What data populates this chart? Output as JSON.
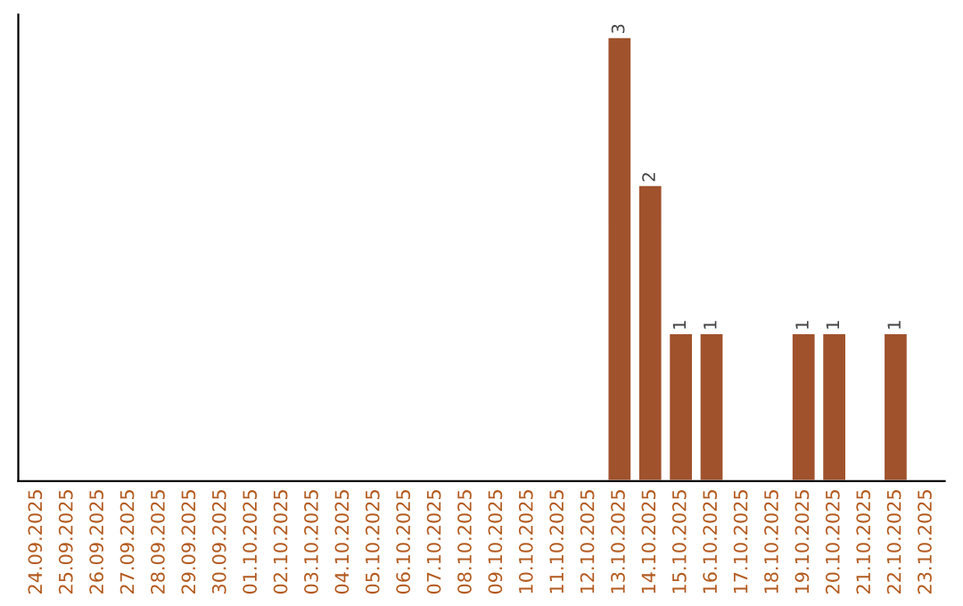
{
  "chart_data": {
    "type": "bar",
    "categories": [
      "24.09.2025",
      "25.09.2025",
      "26.09.2025",
      "27.09.2025",
      "28.09.2025",
      "29.09.2025",
      "30.09.2025",
      "01.10.2025",
      "02.10.2025",
      "03.10.2025",
      "04.10.2025",
      "05.10.2025",
      "06.10.2025",
      "07.10.2025",
      "08.10.2025",
      "09.10.2025",
      "10.10.2025",
      "11.10.2025",
      "12.10.2025",
      "13.10.2025",
      "14.10.2025",
      "15.10.2025",
      "16.10.2025",
      "17.10.2025",
      "18.10.2025",
      "19.10.2025",
      "20.10.2025",
      "21.10.2025",
      "22.10.2025",
      "23.10.2025"
    ],
    "values": [
      null,
      null,
      null,
      null,
      null,
      null,
      null,
      null,
      null,
      null,
      null,
      null,
      null,
      null,
      null,
      null,
      null,
      null,
      null,
      3,
      2,
      1,
      1,
      null,
      null,
      1,
      1,
      null,
      1,
      null
    ],
    "data_labels": true,
    "color": "#a0522d"
  }
}
